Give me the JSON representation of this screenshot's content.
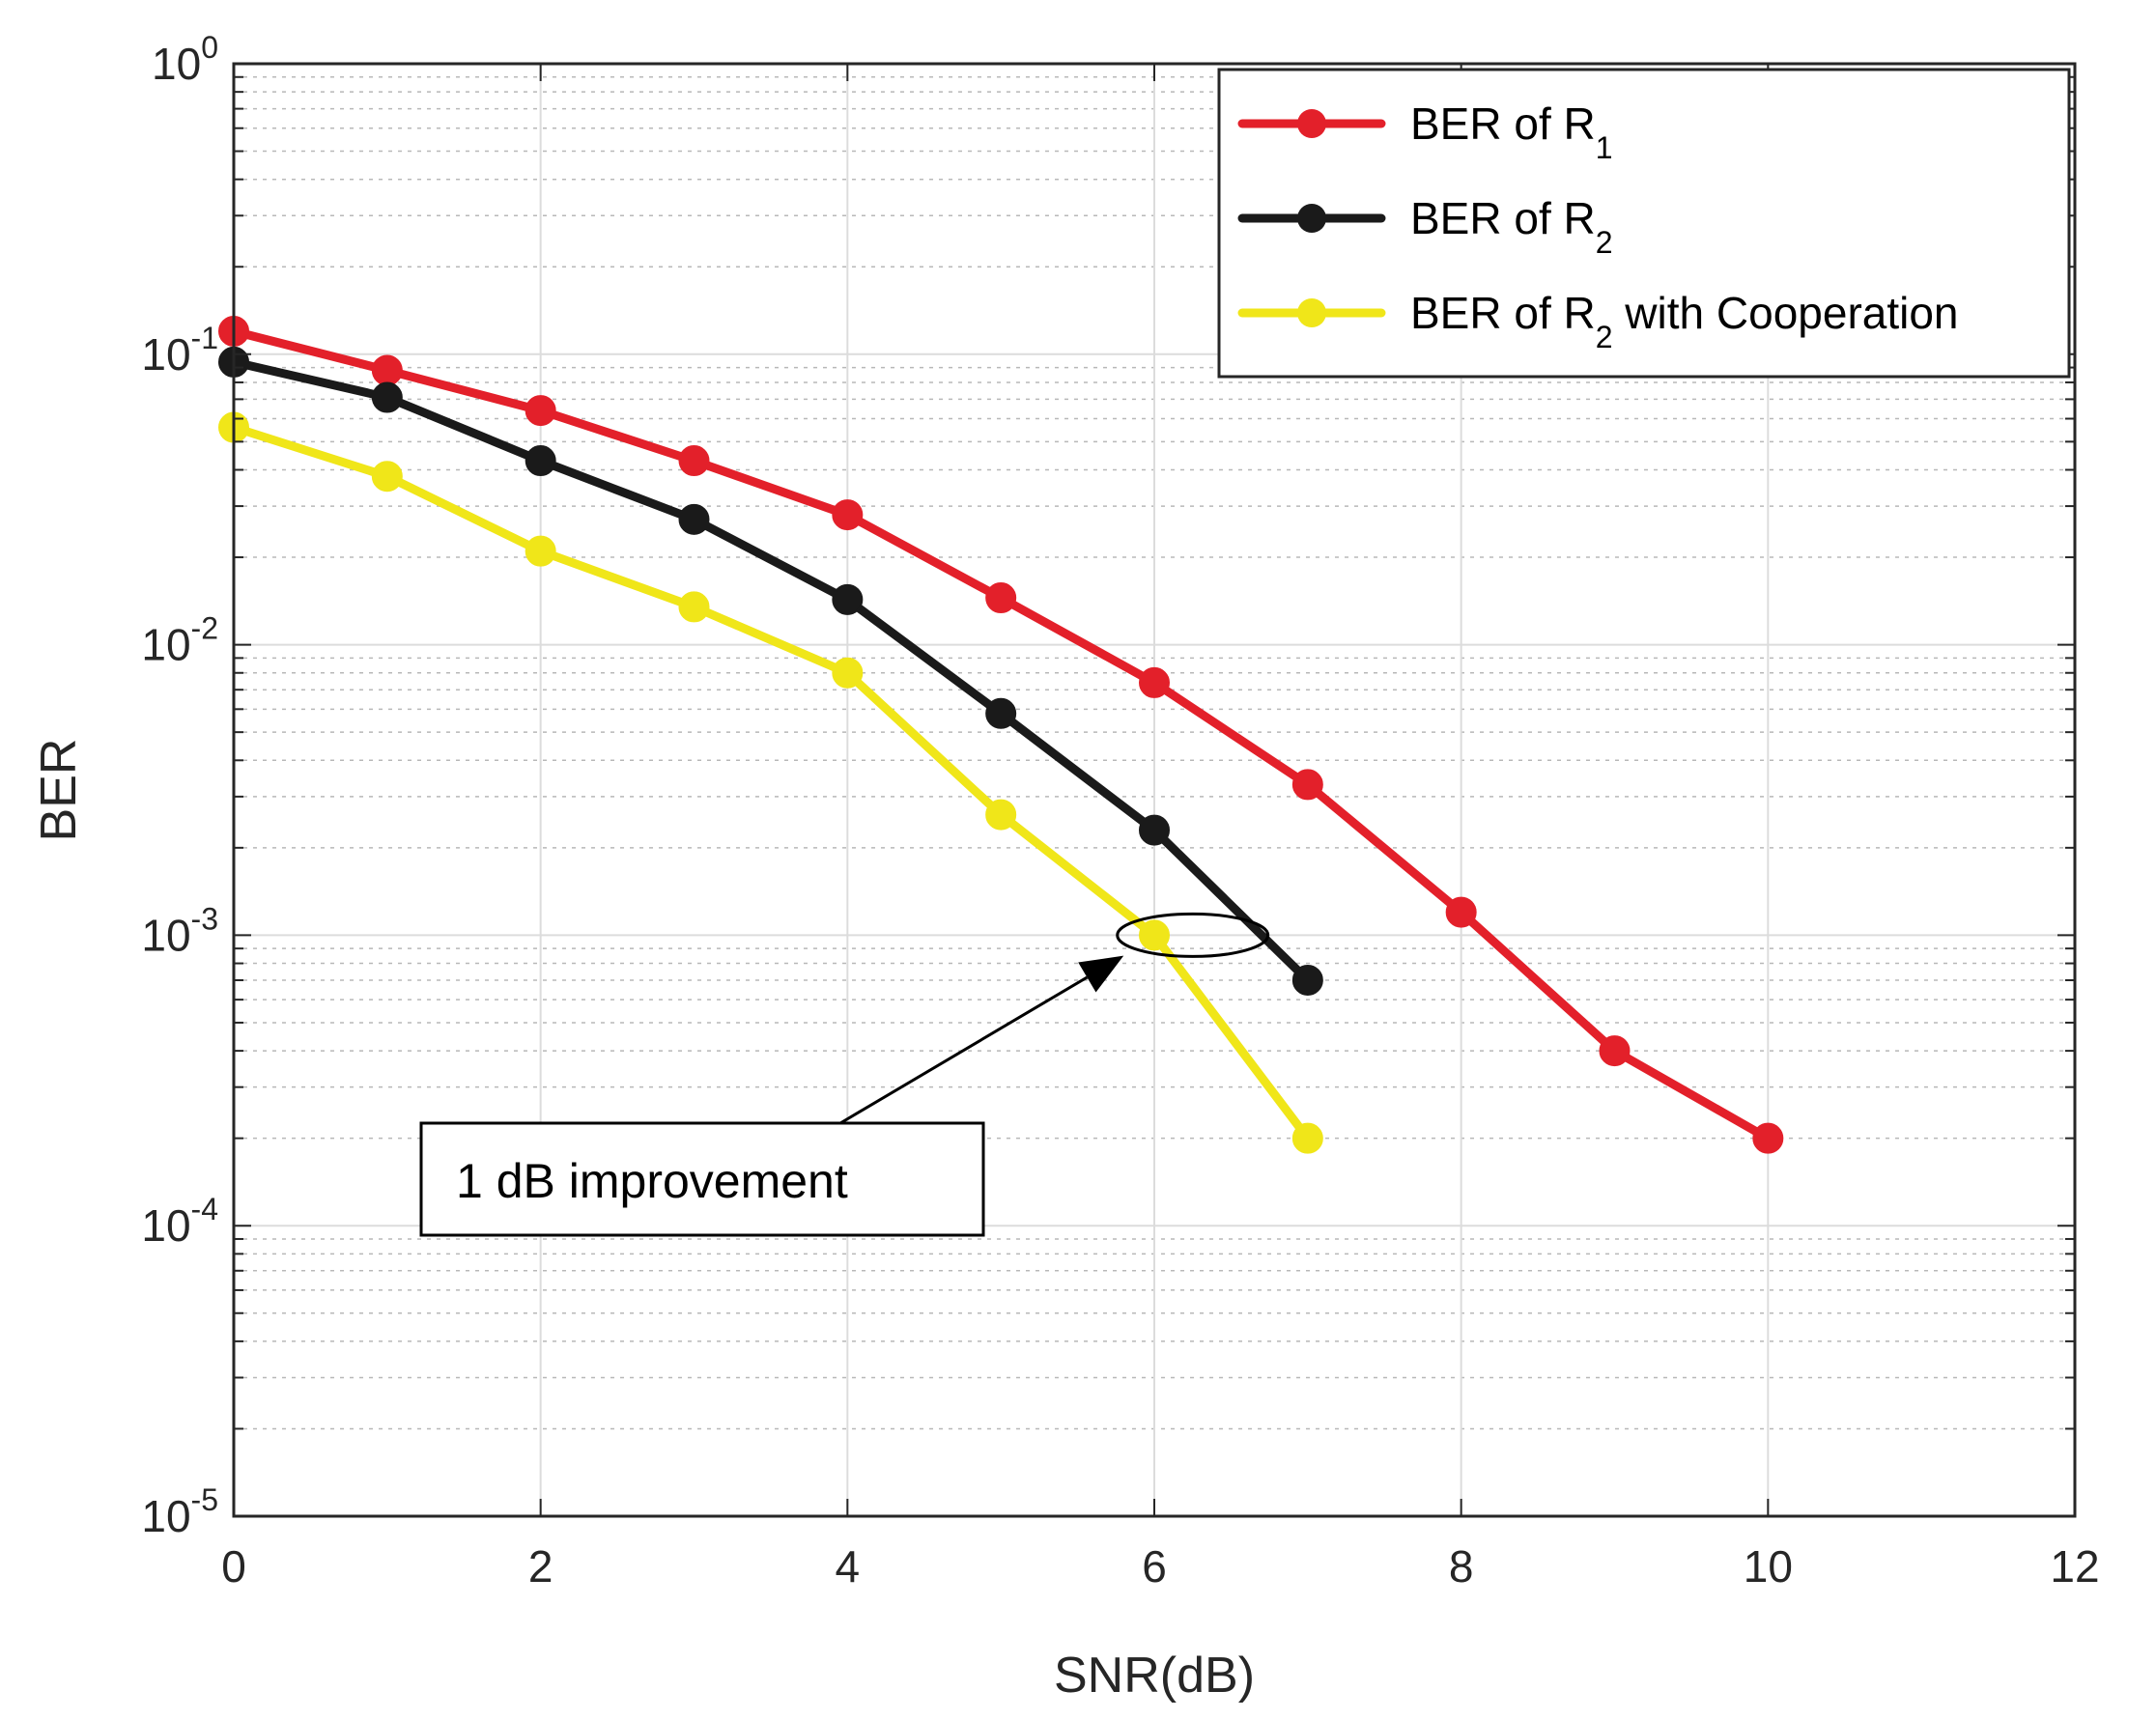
{
  "chart_data": {
    "type": "line",
    "yscale": "log",
    "title": "",
    "xlabel": "SNR(dB)",
    "ylabel": "BER",
    "xlim": [
      0,
      12
    ],
    "ylim": [
      1e-05,
      1
    ],
    "x_ticks": [
      0,
      2,
      4,
      6,
      8,
      10,
      12
    ],
    "x_tick_labels": [
      "0",
      "2",
      "4",
      "6",
      "8",
      "10",
      "12"
    ],
    "y_ticks": [
      {
        "value": 1,
        "base": "10",
        "exp": "0"
      },
      {
        "value": 0.1,
        "base": "10",
        "exp": "-1"
      },
      {
        "value": 0.01,
        "base": "10",
        "exp": "-2"
      },
      {
        "value": 0.001,
        "base": "10",
        "exp": "-3"
      },
      {
        "value": 0.0001,
        "base": "10",
        "exp": "-4"
      },
      {
        "value": 1e-05,
        "base": "10",
        "exp": "-5"
      }
    ],
    "grid": true,
    "legend_position": "top-right",
    "series": [
      {
        "name": "BER of R1",
        "legend_main": "BER of R",
        "legend_sub": "1",
        "legend_suffix": "",
        "color": "#e3202a",
        "x": [
          0,
          1,
          2,
          3,
          4,
          5,
          6,
          7,
          8,
          9,
          10
        ],
        "y": [
          0.12,
          0.088,
          0.064,
          0.043,
          0.028,
          0.0145,
          0.0074,
          0.0033,
          0.0012,
          0.0004,
          0.0002
        ]
      },
      {
        "name": "BER of R2",
        "legend_main": "BER of R",
        "legend_sub": "2",
        "legend_suffix": "",
        "color": "#1a1a1a",
        "x": [
          0,
          1,
          2,
          3,
          4,
          5,
          6,
          7
        ],
        "y": [
          0.094,
          0.071,
          0.043,
          0.027,
          0.0143,
          0.0058,
          0.0023,
          0.0007
        ]
      },
      {
        "name": "BER of R2 with Cooperation",
        "legend_main": "BER of R",
        "legend_sub": "2",
        "legend_suffix": " with Cooperation",
        "color": "#f0e619",
        "x": [
          0,
          1,
          2,
          3,
          4,
          5,
          6,
          7
        ],
        "y": [
          0.056,
          0.038,
          0.021,
          0.0135,
          0.008,
          0.0026,
          0.001,
          0.0002
        ]
      }
    ],
    "annotations": [
      {
        "text": "1 dB improvement",
        "ellipse_center": [
          6.25,
          0.001
        ],
        "arrow_to": [
          5.8,
          0.00085
        ]
      }
    ]
  }
}
